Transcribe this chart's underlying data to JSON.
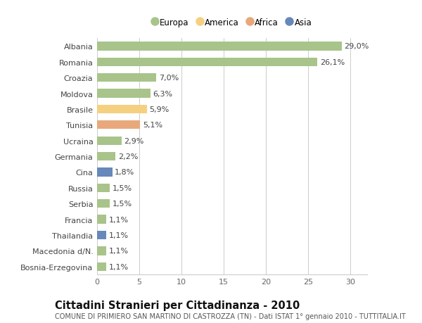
{
  "categories": [
    "Bosnia-Erzegovina",
    "Macedonia d/N.",
    "Thailandia",
    "Francia",
    "Serbia",
    "Russia",
    "Cina",
    "Germania",
    "Ucraina",
    "Tunisia",
    "Brasile",
    "Moldova",
    "Croazia",
    "Romania",
    "Albania"
  ],
  "values": [
    1.1,
    1.1,
    1.1,
    1.1,
    1.5,
    1.5,
    1.8,
    2.2,
    2.9,
    5.1,
    5.9,
    6.3,
    7.0,
    26.1,
    29.0
  ],
  "labels": [
    "1,1%",
    "1,1%",
    "1,1%",
    "1,1%",
    "1,5%",
    "1,5%",
    "1,8%",
    "2,2%",
    "2,9%",
    "5,1%",
    "5,9%",
    "6,3%",
    "7,0%",
    "26,1%",
    "29,0%"
  ],
  "continents": [
    "Europa",
    "Europa",
    "Asia",
    "Europa",
    "Europa",
    "Europa",
    "Asia",
    "Europa",
    "Europa",
    "Africa",
    "America",
    "Europa",
    "Europa",
    "Europa",
    "Europa"
  ],
  "colors": {
    "Europa": "#a8c48a",
    "America": "#f5d080",
    "Africa": "#e8a87c",
    "Asia": "#6688bb"
  },
  "legend_order": [
    "Europa",
    "America",
    "Africa",
    "Asia"
  ],
  "legend_colors": [
    "#a8c48a",
    "#f5d080",
    "#e8a87c",
    "#6688bb"
  ],
  "title": "Cittadini Stranieri per Cittadinanza - 2010",
  "subtitle": "COMUNE DI PRIMIERO SAN MARTINO DI CASTROZZA (TN) - Dati ISTAT 1° gennaio 2010 - TUTTITALIA.IT",
  "xlim": [
    0,
    32
  ],
  "xticks": [
    0,
    5,
    10,
    15,
    20,
    25,
    30
  ],
  "bg_color": "#ffffff",
  "grid_color": "#cccccc",
  "bar_height": 0.55,
  "label_fontsize": 8,
  "tick_fontsize": 8,
  "title_fontsize": 10.5,
  "subtitle_fontsize": 7
}
